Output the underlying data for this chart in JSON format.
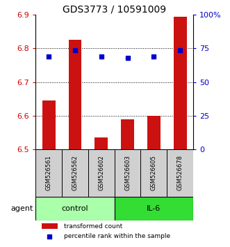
{
  "title": "GDS3773 / 10591009",
  "samples": [
    "GSM526561",
    "GSM526562",
    "GSM526602",
    "GSM526603",
    "GSM526605",
    "GSM526678"
  ],
  "bar_values": [
    6.645,
    6.825,
    6.535,
    6.59,
    6.6,
    6.895
  ],
  "blue_values": [
    6.775,
    6.795,
    6.775,
    6.772,
    6.775,
    6.795
  ],
  "bar_color": "#cc1111",
  "blue_color": "#0000cc",
  "ylim_left": [
    6.5,
    6.9
  ],
  "yticks_left": [
    6.5,
    6.6,
    6.7,
    6.8,
    6.9
  ],
  "ytick_labels_left": [
    "6.5",
    "6.6",
    "6.7",
    "6.8",
    "6.9"
  ],
  "ylim_right": [
    0,
    100
  ],
  "yticks_right": [
    0,
    25,
    50,
    75,
    100
  ],
  "ytick_labels_right": [
    "0",
    "25",
    "50",
    "75",
    "100%"
  ],
  "groups": [
    {
      "label": "control",
      "start": 0,
      "end": 2,
      "color": "#aaffaa"
    },
    {
      "label": "IL-6",
      "start": 3,
      "end": 5,
      "color": "#33dd33"
    }
  ],
  "agent_label": "agent",
  "legend_bar_label": "transformed count",
  "legend_blue_label": "percentile rank within the sample",
  "background_color": "#ffffff",
  "left_tick_color": "#cc0000",
  "right_tick_color": "#0000cc",
  "sample_box_color": "#d0d0d0",
  "bar_width": 0.5
}
